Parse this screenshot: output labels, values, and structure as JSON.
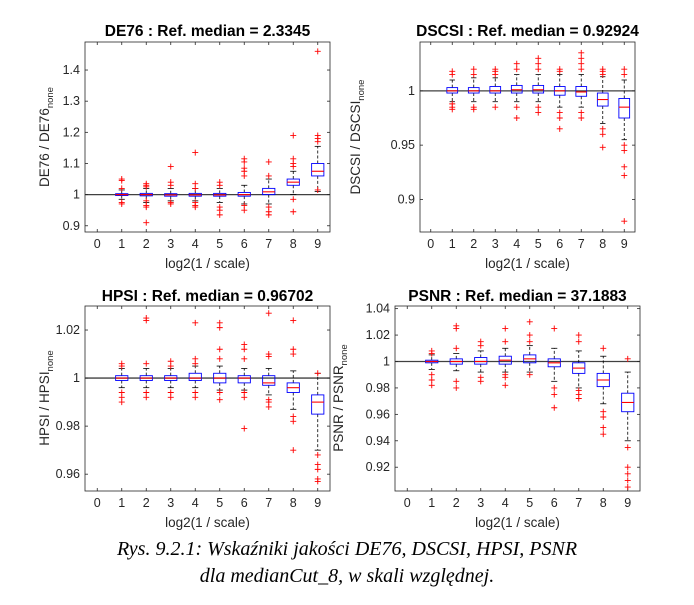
{
  "figure": {
    "caption_line1": "Rys. 9.2.1: Wskaźniki jakości DE76, DSCSI, HPSI, PSNR",
    "caption_line2": "dla medianCut_8, w skali względnej."
  },
  "chart_data": [
    {
      "type": "box",
      "title": "DE76 : Ref. median = 2.3345",
      "xlabel": "log2(1 / scale)",
      "ylabel_main": "DE76 / DE76",
      "ylabel_sub": "none",
      "xlim": [
        -0.5,
        9.5
      ],
      "ylim": [
        0.88,
        1.49
      ],
      "xticks": [
        0,
        1,
        2,
        3,
        4,
        5,
        6,
        7,
        8,
        9
      ],
      "yticks": [
        0.9,
        1,
        1.1,
        1.2,
        1.3,
        1.4
      ],
      "reference_line": 1,
      "boxes": [
        {
          "x": 1,
          "q1": 0.997,
          "median": 1.0,
          "q3": 1.003,
          "wlo": 0.985,
          "whi": 1.015,
          "outliers": [
            1.05,
            1.045,
            0.975,
            0.97,
            1.02
          ]
        },
        {
          "x": 2,
          "q1": 0.996,
          "median": 1.0,
          "q3": 1.004,
          "wlo": 0.975,
          "whi": 1.02,
          "outliers": [
            0.91,
            1.035,
            1.03,
            1.025,
            0.96,
            0.965,
            0.98
          ]
        },
        {
          "x": 3,
          "q1": 0.995,
          "median": 0.999,
          "q3": 1.003,
          "wlo": 0.98,
          "whi": 1.02,
          "outliers": [
            1.09,
            1.04,
            1.03,
            0.975,
            0.97
          ]
        },
        {
          "x": 4,
          "q1": 0.995,
          "median": 0.999,
          "q3": 1.004,
          "wlo": 0.98,
          "whi": 1.02,
          "outliers": [
            1.135,
            1.035,
            1.02,
            0.96,
            0.965,
            0.975
          ]
        },
        {
          "x": 5,
          "q1": 0.995,
          "median": 0.999,
          "q3": 1.004,
          "wlo": 0.975,
          "whi": 1.02,
          "outliers": [
            1.04,
            1.03,
            0.95,
            0.935,
            0.96
          ]
        },
        {
          "x": 6,
          "q1": 0.995,
          "median": 1.0,
          "q3": 1.007,
          "wlo": 0.97,
          "whi": 1.03,
          "outliers": [
            1.115,
            1.105,
            1.085,
            1.075,
            1.06,
            0.965,
            0.95
          ]
        },
        {
          "x": 7,
          "q1": 1.0,
          "median": 1.009,
          "q3": 1.02,
          "wlo": 0.97,
          "whi": 1.05,
          "outliers": [
            1.105,
            1.06,
            0.96,
            0.945,
            0.935
          ]
        },
        {
          "x": 8,
          "q1": 1.03,
          "median": 1.04,
          "q3": 1.05,
          "wlo": 1.0,
          "whi": 1.075,
          "outliers": [
            1.19,
            1.115,
            1.1,
            1.09,
            0.985,
            0.945
          ]
        },
        {
          "x": 9,
          "q1": 1.06,
          "median": 1.075,
          "q3": 1.1,
          "wlo": 1.01,
          "whi": 1.155,
          "outliers": [
            1.46,
            1.19,
            1.18,
            1.17,
            1.015
          ]
        }
      ]
    },
    {
      "type": "box",
      "title": "DSCSI : Ref. median = 0.92924",
      "xlabel": "log2(1 / scale)",
      "ylabel_main": "DSCSI / DSCSI",
      "ylabel_sub": "none",
      "xlim": [
        -0.5,
        9.5
      ],
      "ylim": [
        0.87,
        1.045
      ],
      "xticks": [
        0,
        1,
        2,
        3,
        4,
        5,
        6,
        7,
        8,
        9
      ],
      "yticks": [
        0.9,
        0.95,
        1
      ],
      "reference_line": 1,
      "boxes": [
        {
          "x": 1,
          "q1": 0.998,
          "median": 1.0,
          "q3": 1.003,
          "wlo": 0.99,
          "whi": 1.01,
          "outliers": [
            1.018,
            1.015,
            0.988,
            0.985,
            0.983
          ]
        },
        {
          "x": 2,
          "q1": 0.998,
          "median": 1.0,
          "q3": 1.003,
          "wlo": 0.99,
          "whi": 1.012,
          "outliers": [
            1.02,
            1.015,
            0.985,
            0.983
          ]
        },
        {
          "x": 3,
          "q1": 0.998,
          "median": 1.0,
          "q3": 1.004,
          "wlo": 0.99,
          "whi": 1.012,
          "outliers": [
            1.02,
            1.018,
            1.015,
            0.985
          ]
        },
        {
          "x": 4,
          "q1": 0.998,
          "median": 1.001,
          "q3": 1.005,
          "wlo": 0.99,
          "whi": 1.015,
          "outliers": [
            1.025,
            1.02,
            0.985,
            0.975
          ]
        },
        {
          "x": 5,
          "q1": 0.998,
          "median": 1.001,
          "q3": 1.005,
          "wlo": 0.99,
          "whi": 1.015,
          "outliers": [
            1.03,
            1.025,
            1.02,
            0.985,
            0.98
          ]
        },
        {
          "x": 6,
          "q1": 0.996,
          "median": 1.0,
          "q3": 1.004,
          "wlo": 0.985,
          "whi": 1.015,
          "outliers": [
            1.02,
            1.018,
            0.98,
            0.975,
            0.965
          ]
        },
        {
          "x": 7,
          "q1": 0.995,
          "median": 0.999,
          "q3": 1.004,
          "wlo": 0.985,
          "whi": 1.015,
          "outliers": [
            1.035,
            1.03,
            1.025,
            1.02,
            0.98,
            0.975
          ]
        },
        {
          "x": 8,
          "q1": 0.986,
          "median": 0.992,
          "q3": 0.998,
          "wlo": 0.97,
          "whi": 1.013,
          "outliers": [
            1.02,
            1.018,
            1.015,
            0.965,
            0.96,
            0.948
          ]
        },
        {
          "x": 9,
          "q1": 0.975,
          "median": 0.985,
          "q3": 0.993,
          "wlo": 0.955,
          "whi": 1.01,
          "outliers": [
            1.02,
            1.015,
            0.95,
            0.945,
            0.93,
            0.922,
            0.88
          ]
        }
      ]
    },
    {
      "type": "box",
      "title": "HPSI : Ref. median = 0.96702",
      "xlabel": "log2(1 / scale)",
      "ylabel_main": "HPSI / HPSI",
      "ylabel_sub": "none",
      "xlim": [
        -0.5,
        9.5
      ],
      "ylim": [
        0.953,
        1.03
      ],
      "xticks": [
        0,
        1,
        2,
        3,
        4,
        5,
        6,
        7,
        8,
        9
      ],
      "yticks": [
        0.96,
        0.98,
        1,
        1.02
      ],
      "reference_line": 1,
      "boxes": [
        {
          "x": 1,
          "q1": 0.999,
          "median": 1.0,
          "q3": 1.001,
          "wlo": 0.996,
          "whi": 1.004,
          "outliers": [
            1.006,
            1.005,
            0.994,
            0.992,
            0.99
          ]
        },
        {
          "x": 2,
          "q1": 0.999,
          "median": 1.0,
          "q3": 1.001,
          "wlo": 0.996,
          "whi": 1.004,
          "outliers": [
            1.025,
            1.024,
            1.006,
            0.994,
            0.992
          ]
        },
        {
          "x": 3,
          "q1": 0.999,
          "median": 1.0,
          "q3": 1.001,
          "wlo": 0.996,
          "whi": 1.004,
          "outliers": [
            1.007,
            1.005,
            0.994,
            0.992
          ]
        },
        {
          "x": 4,
          "q1": 0.999,
          "median": 1.0,
          "q3": 1.002,
          "wlo": 0.996,
          "whi": 1.005,
          "outliers": [
            1.023,
            1.008,
            1.006,
            0.994,
            0.992
          ]
        },
        {
          "x": 5,
          "q1": 0.998,
          "median": 1.0,
          "q3": 1.002,
          "wlo": 0.995,
          "whi": 1.005,
          "outliers": [
            1.023,
            1.021,
            1.012,
            1.008,
            0.994,
            0.991
          ]
        },
        {
          "x": 6,
          "q1": 0.998,
          "median": 1.0,
          "q3": 1.001,
          "wlo": 0.995,
          "whi": 1.004,
          "outliers": [
            1.014,
            1.012,
            1.008,
            0.994,
            0.992,
            0.979
          ]
        },
        {
          "x": 7,
          "q1": 0.997,
          "median": 0.998,
          "q3": 1.001,
          "wlo": 0.993,
          "whi": 1.004,
          "outliers": [
            1.027,
            1.01,
            1.009,
            0.991,
            0.99,
            0.988
          ]
        },
        {
          "x": 8,
          "q1": 0.994,
          "median": 0.996,
          "q3": 0.998,
          "wlo": 0.987,
          "whi": 1.003,
          "outliers": [
            1.024,
            1.012,
            1.01,
            0.984,
            0.982,
            0.97
          ]
        },
        {
          "x": 9,
          "q1": 0.985,
          "median": 0.99,
          "q3": 0.993,
          "wlo": 0.97,
          "whi": 1.002,
          "outliers": [
            1.002,
            0.968,
            0.964,
            0.962,
            0.958,
            0.957
          ]
        }
      ]
    },
    {
      "type": "box",
      "title": "PSNR : Ref. median = 37.1883",
      "xlabel": "log2(1 / scale)",
      "ylabel_main": "PSNR / PSNR",
      "ylabel_sub": "none",
      "xlim": [
        -0.5,
        9.5
      ],
      "ylim": [
        0.902,
        1.042
      ],
      "xticks": [
        0,
        1,
        2,
        3,
        4,
        5,
        6,
        7,
        8,
        9
      ],
      "yticks": [
        0.92,
        0.94,
        0.96,
        0.98,
        1,
        1.02,
        1.04
      ],
      "reference_line": 1,
      "boxes": [
        {
          "x": 1,
          "q1": 0.999,
          "median": 1.0,
          "q3": 1.001,
          "wlo": 0.994,
          "whi": 1.005,
          "outliers": [
            1.008,
            1.006,
            0.99,
            0.986,
            0.982
          ]
        },
        {
          "x": 2,
          "q1": 0.998,
          "median": 1.0,
          "q3": 1.002,
          "wlo": 0.993,
          "whi": 1.006,
          "outliers": [
            1.027,
            1.025,
            1.01,
            0.985,
            0.98
          ]
        },
        {
          "x": 3,
          "q1": 0.998,
          "median": 1.0,
          "q3": 1.003,
          "wlo": 0.992,
          "whi": 1.008,
          "outliers": [
            1.015,
            1.012,
            0.988,
            0.985
          ]
        },
        {
          "x": 4,
          "q1": 0.998,
          "median": 1.001,
          "q3": 1.004,
          "wlo": 0.992,
          "whi": 1.01,
          "outliers": [
            1.025,
            1.015,
            0.99,
            0.988,
            0.982
          ]
        },
        {
          "x": 5,
          "q1": 0.999,
          "median": 1.002,
          "q3": 1.005,
          "wlo": 0.992,
          "whi": 1.012,
          "outliers": [
            1.03,
            1.02,
            1.015,
            0.99
          ]
        },
        {
          "x": 6,
          "q1": 0.996,
          "median": 0.999,
          "q3": 1.002,
          "wlo": 0.985,
          "whi": 1.01,
          "outliers": [
            1.025,
            0.98,
            0.975,
            0.965
          ]
        },
        {
          "x": 7,
          "q1": 0.991,
          "median": 0.995,
          "q3": 0.999,
          "wlo": 0.98,
          "whi": 1.008,
          "outliers": [
            1.02,
            1.015,
            0.978,
            0.975,
            0.972
          ]
        },
        {
          "x": 8,
          "q1": 0.981,
          "median": 0.986,
          "q3": 0.991,
          "wlo": 0.968,
          "whi": 1.004,
          "outliers": [
            1.01,
            0.962,
            0.958,
            0.95,
            0.945
          ]
        },
        {
          "x": 9,
          "q1": 0.962,
          "median": 0.969,
          "q3": 0.976,
          "wlo": 0.94,
          "whi": 0.992,
          "outliers": [
            1.002,
            0.935,
            0.92,
            0.915,
            0.91,
            0.905
          ]
        }
      ]
    }
  ]
}
